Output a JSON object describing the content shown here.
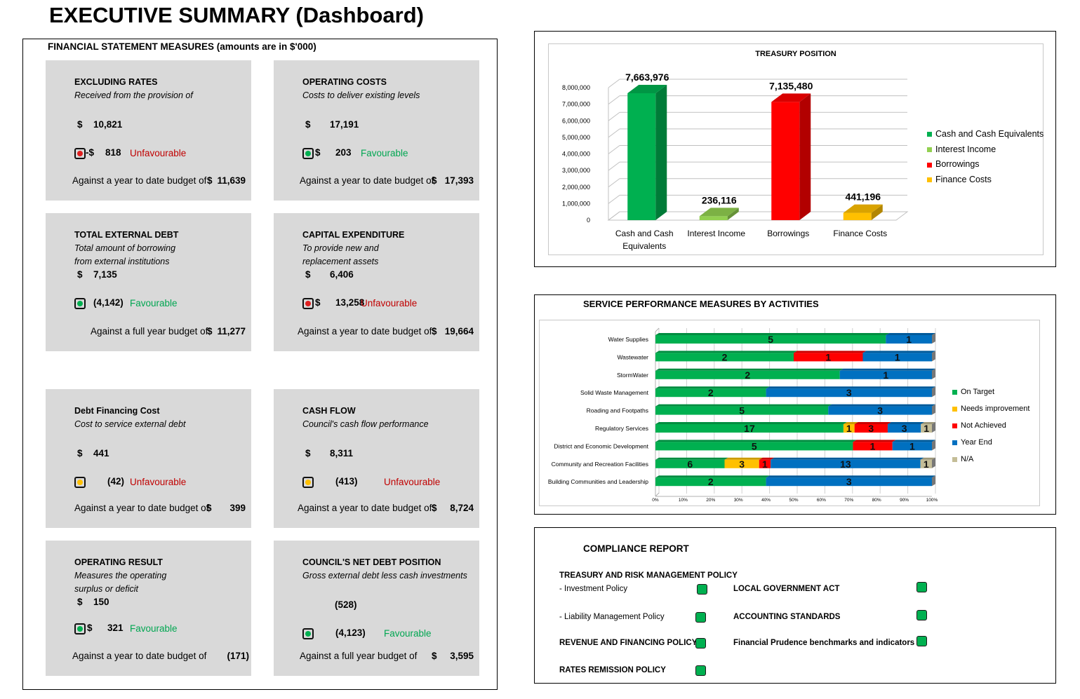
{
  "page": {
    "title": "EXECUTIVE SUMMARY (Dashboard)"
  },
  "colors": {
    "favourable": "#00a651",
    "unfavourable": "#c00000",
    "card_bg": "#d9d9d9",
    "light_green": "#00b050",
    "light_red": "#e02020",
    "light_yellow": "#ffc000"
  },
  "financial": {
    "heading": "FINANCIAL STATEMENT MEASURES (amounts are in $'000)",
    "cards": [
      {
        "title": "EXCLUDING RATES",
        "desc": [
          "Received from the provision of"
        ],
        "currency": "$",
        "actual": "10,821",
        "light": "red",
        "variance_prefix": "-$",
        "variance": "818",
        "status": "Unfavourable",
        "budget_label": "Against a year to date budget of",
        "budget_currency": "$",
        "budget": "11,639"
      },
      {
        "title": "OPERATING COSTS",
        "desc": [
          "Costs to deliver existing levels"
        ],
        "currency": "$",
        "actual": "17,191",
        "light": "green",
        "variance_prefix": "$",
        "variance": "203",
        "status": "Favourable",
        "budget_label": "Against a year to date budget of",
        "budget_currency": "$",
        "budget": "17,393"
      },
      {
        "title": "TOTAL EXTERNAL DEBT",
        "desc": [
          "Total amount of borrowing",
          "from external institutions"
        ],
        "currency": "$",
        "actual": "7,135",
        "light": "green",
        "variance_prefix": "",
        "variance": "(4,142)",
        "status": "Favourable",
        "budget_label": "Against a full year budget of",
        "budget_currency": "$",
        "budget": "11,277"
      },
      {
        "title": "CAPITAL EXPENDITURE",
        "desc": [
          "To provide new and",
          "replacement assets"
        ],
        "currency": "$",
        "actual": "6,406",
        "light": "red",
        "variance_prefix": "$",
        "variance": "13,258",
        "status": "Unfavourable",
        "budget_label": "Against a year to date budget of",
        "budget_currency": "$",
        "budget": "19,664"
      },
      {
        "title": "Debt Financing  Cost",
        "desc": [
          "Cost to service external debt"
        ],
        "currency": "$",
        "actual": "441",
        "light": "yellow",
        "variance_prefix": "",
        "variance": "(42)",
        "status": "Unfavourable",
        "budget_label": "Against a year to date budget of",
        "budget_currency": "$",
        "budget": "399"
      },
      {
        "title": "CASH FLOW",
        "desc": [
          "Council's cash flow performance"
        ],
        "currency": "$",
        "actual": "8,311",
        "light": "yellow",
        "variance_prefix": "",
        "variance": "(413)",
        "status": "Unfavourable",
        "budget_label": "Against a year to date budget of",
        "budget_currency": "$",
        "budget": "8,724"
      },
      {
        "title": "OPERATING RESULT",
        "desc": [
          "Measures the operating",
          "surplus or deficit"
        ],
        "currency": "$",
        "actual": "150",
        "light": "green",
        "variance_prefix": "$",
        "variance": "321",
        "status": "Favourable",
        "budget_label": "Against a year to date budget of",
        "budget_currency": "",
        "budget": "(171)"
      },
      {
        "title": "COUNCIL'S NET DEBT POSITION",
        "desc": [
          "Gross external debt less cash investments"
        ],
        "currency": "",
        "actual": "(528)",
        "light": "green",
        "variance_prefix": "",
        "variance": "(4,123)",
        "status": "Favourable",
        "budget_label": "Against a full year budget of",
        "budget_currency": "$",
        "budget": "3,595"
      }
    ]
  },
  "chart_data": [
    {
      "type": "bar",
      "title": "TREASURY POSITION",
      "categories": [
        "Cash and Cash Equivalents",
        "Interest Income",
        "Borrowings",
        "Finance Costs"
      ],
      "series": [
        {
          "name": "Cash and Cash Equivalents",
          "color": "#00b050",
          "values": [
            7663976,
            null,
            null,
            null
          ]
        },
        {
          "name": "Interest Income",
          "color": "#92d050",
          "values": [
            null,
            236116,
            null,
            null
          ]
        },
        {
          "name": "Borrowings",
          "color": "#ff0000",
          "values": [
            null,
            null,
            7135480,
            null
          ]
        },
        {
          "name": "Finance Costs",
          "color": "#ffc000",
          "values": [
            null,
            null,
            null,
            441196
          ]
        }
      ],
      "data_labels": [
        "7,663,976",
        "236,116",
        "7,135,480",
        "441,196"
      ],
      "ylim": [
        0,
        8000000
      ],
      "yticks": [
        "0",
        "1,000,000",
        "2,000,000",
        "3,000,000",
        "4,000,000",
        "5,000,000",
        "6,000,000",
        "7,000,000",
        "8,000,000"
      ],
      "legend_position": "right",
      "grid": true
    },
    {
      "type": "bar",
      "orientation": "horizontal-stacked-percent",
      "title": "SERVICE PERFORMANCE MEASURES BY ACTIVITIES",
      "categories": [
        "Water Supplies",
        "Wastewater",
        "StormWater",
        "Solid Waste Management",
        "Roading and Footpaths",
        "Regulatory Services",
        "District and Economic Development",
        "Community and Recreation Facilities",
        "Building Communities and Leadership"
      ],
      "series": [
        {
          "name": "On Target",
          "color": "#00b050",
          "values": [
            5,
            2,
            2,
            2,
            5,
            17,
            5,
            6,
            2
          ]
        },
        {
          "name": "Needs improvement",
          "color": "#ffc000",
          "values": [
            0,
            0,
            0,
            0,
            0,
            1,
            0,
            3,
            0
          ]
        },
        {
          "name": "Not Achieved",
          "color": "#ff0000",
          "values": [
            0,
            1,
            0,
            0,
            0,
            3,
            1,
            1,
            0
          ]
        },
        {
          "name": "Year End",
          "color": "#0070c0",
          "values": [
            1,
            1,
            1,
            3,
            3,
            3,
            1,
            13,
            3
          ]
        },
        {
          "name": "N/A",
          "color": "#c4bd97",
          "values": [
            0,
            0,
            0,
            0,
            0,
            1,
            0,
            1,
            0
          ]
        }
      ],
      "xticks": [
        "0%",
        "10%",
        "20%",
        "30%",
        "40%",
        "50%",
        "60%",
        "70%",
        "80%",
        "90%",
        "100%"
      ],
      "legend_position": "right",
      "grid": true
    }
  ],
  "compliance": {
    "heading": "COMPLIANCE REPORT",
    "left": [
      {
        "label": "TREASURY AND RISK MANAGEMENT POLICY",
        "bold": true,
        "box": false
      },
      {
        "label": "-  Investment Policy",
        "bold": false,
        "box": true
      },
      {
        "label": "-  Liability Management Policy",
        "bold": false,
        "box": true
      },
      {
        "label": "REVENUE AND FINANCING POLICY",
        "bold": true,
        "box": true
      },
      {
        "label": "RATES REMISSION POLICY",
        "bold": true,
        "box": true
      }
    ],
    "right": [
      {
        "label": "LOCAL GOVERNMENT ACT",
        "bold": true,
        "box": true
      },
      {
        "label": "ACCOUNTING STANDARDS",
        "bold": true,
        "box": true
      },
      {
        "label": "Financial Prudence benchmarks and indicators",
        "bold": true,
        "box": true
      }
    ]
  }
}
